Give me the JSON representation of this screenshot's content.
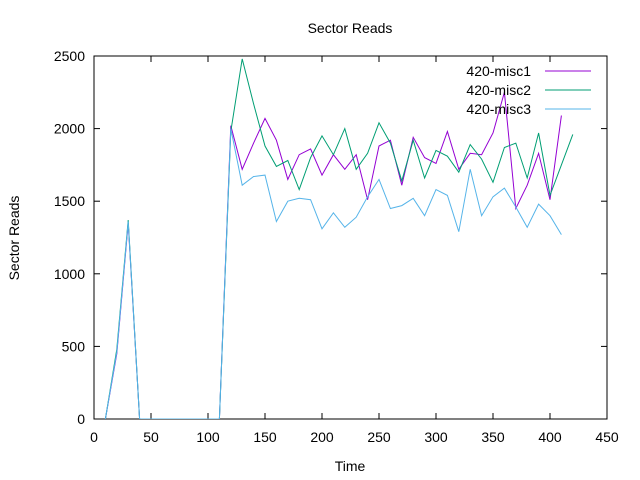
{
  "chart_data": {
    "type": "line",
    "title": "Sector Reads",
    "xlabel": "Time",
    "ylabel": "Sector Reads",
    "xlim": [
      0,
      450
    ],
    "ylim": [
      0,
      2500
    ],
    "xticks": [
      0,
      50,
      100,
      150,
      200,
      250,
      300,
      350,
      400,
      450
    ],
    "yticks": [
      0,
      500,
      1000,
      1500,
      2000,
      2500
    ],
    "grid": false,
    "legend_position": "top-right",
    "series": [
      {
        "name": "420-misc1",
        "color": "#9400d3",
        "x": [
          10,
          20,
          30,
          40,
          50,
          60,
          70,
          80,
          90,
          100,
          110,
          120,
          130,
          140,
          150,
          160,
          170,
          180,
          190,
          200,
          210,
          220,
          230,
          240,
          250,
          260,
          270,
          280,
          290,
          300,
          310,
          320,
          330,
          340,
          350,
          360,
          370,
          380,
          390,
          400,
          410
        ],
        "y": [
          0,
          450,
          1350,
          0,
          0,
          0,
          0,
          0,
          0,
          0,
          0,
          2020,
          1720,
          1900,
          2070,
          1920,
          1650,
          1820,
          1860,
          1680,
          1820,
          1720,
          1820,
          1510,
          1880,
          1920,
          1610,
          1940,
          1800,
          1760,
          1980,
          1720,
          1830,
          1820,
          1970,
          2250,
          1450,
          1610,
          1830,
          1510,
          2090
        ]
      },
      {
        "name": "420-misc2",
        "color": "#009e73",
        "x": [
          10,
          20,
          30,
          40,
          50,
          60,
          70,
          80,
          90,
          100,
          110,
          120,
          130,
          140,
          150,
          160,
          170,
          180,
          190,
          200,
          210,
          220,
          230,
          240,
          250,
          260,
          270,
          280,
          290,
          300,
          310,
          320,
          330,
          340,
          350,
          360,
          370,
          380,
          390,
          400,
          410,
          420
        ],
        "y": [
          0,
          480,
          1370,
          0,
          0,
          0,
          0,
          0,
          0,
          0,
          0,
          1980,
          2480,
          2170,
          1880,
          1740,
          1780,
          1580,
          1800,
          1950,
          1820,
          2000,
          1720,
          1830,
          2040,
          1900,
          1640,
          1920,
          1660,
          1850,
          1810,
          1700,
          1890,
          1790,
          1630,
          1870,
          1900,
          1660,
          1970,
          1540,
          1750,
          1960
        ]
      },
      {
        "name": "420-misc3",
        "color": "#56b4e9",
        "x": [
          10,
          20,
          30,
          40,
          50,
          60,
          70,
          80,
          90,
          100,
          110,
          120,
          130,
          140,
          150,
          160,
          170,
          180,
          190,
          200,
          210,
          220,
          230,
          240,
          250,
          260,
          270,
          280,
          290,
          300,
          310,
          320,
          330,
          340,
          350,
          360,
          370,
          380,
          390,
          400,
          410
        ],
        "y": [
          0,
          460,
          1360,
          0,
          0,
          0,
          0,
          0,
          0,
          0,
          0,
          2000,
          1610,
          1670,
          1680,
          1360,
          1500,
          1520,
          1510,
          1310,
          1420,
          1320,
          1390,
          1530,
          1650,
          1450,
          1470,
          1520,
          1400,
          1580,
          1540,
          1290,
          1720,
          1400,
          1530,
          1590,
          1460,
          1320,
          1480,
          1400,
          1270
        ]
      }
    ]
  }
}
